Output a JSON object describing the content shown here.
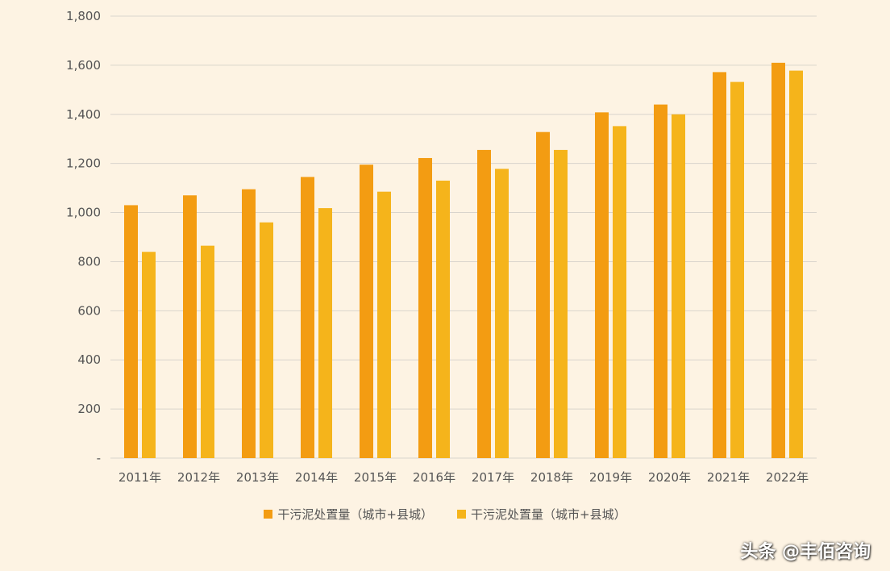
{
  "chart_data": {
    "type": "bar",
    "categories": [
      "2011年",
      "2012年",
      "2013年",
      "2014年",
      "2015年",
      "2016年",
      "2017年",
      "2018年",
      "2019年",
      "2020年",
      "2021年",
      "2022年"
    ],
    "series": [
      {
        "name": "干污泥处置量（城市+县城）",
        "color": "#f39c12",
        "values": [
          1030,
          1070,
          1095,
          1145,
          1195,
          1222,
          1255,
          1328,
          1408,
          1440,
          1572,
          1610
        ]
      },
      {
        "name": "干污泥处置量（城市+县城）",
        "color": "#f5b41b",
        "values": [
          840,
          865,
          960,
          1018,
          1085,
          1130,
          1178,
          1255,
          1352,
          1400,
          1532,
          1578
        ]
      }
    ],
    "yticks": [
      "-",
      "200",
      "400",
      "600",
      "800",
      "1,000",
      "1,200",
      "1,400",
      "1,600",
      "1,800"
    ],
    "ylim": [
      0,
      1800
    ],
    "grid": true,
    "legend_position": "bottom"
  },
  "watermark": "头条 @丰佰咨询"
}
